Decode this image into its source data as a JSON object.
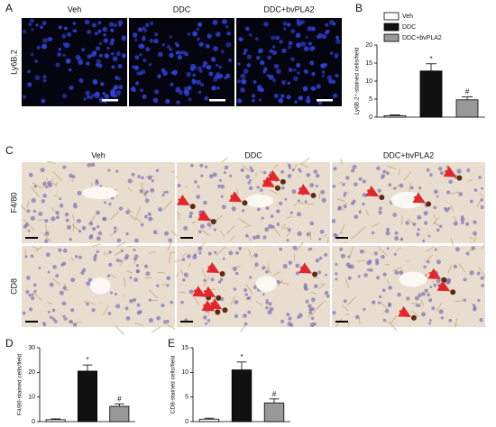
{
  "panel_labels": [
    "A",
    "B",
    "C",
    "D",
    "E"
  ],
  "panel_a": {
    "columns": [
      "Veh",
      "DDC",
      "DDC+bvPLA2"
    ],
    "row_label": "Ly6B.2"
  },
  "panel_c": {
    "columns": [
      "Veh",
      "DDC",
      "DDC+bvPLA2"
    ],
    "rows": [
      "F4/80",
      "CD8"
    ]
  },
  "chart_data": [
    {
      "type": "bar",
      "ylabel": "Ly6B.2⁺-stained cells/field",
      "legend": [
        "Veh",
        "DDC",
        "DDC+bvPLA2"
      ],
      "values": [
        0.4,
        12.8,
        4.8
      ],
      "errors": [
        0.2,
        2.0,
        0.8
      ],
      "colors": [
        "#ffffff",
        "#111111",
        "#999999"
      ],
      "annotations": [
        null,
        "*",
        "#"
      ],
      "ylim": [
        0,
        20
      ],
      "yticks": [
        0,
        5,
        10,
        15,
        20
      ]
    },
    {
      "type": "bar",
      "ylabel": "F4/80-stained cells/field",
      "values": [
        0.8,
        20.5,
        6.2
      ],
      "errors": [
        0.3,
        2.5,
        1.0
      ],
      "colors": [
        "#ffffff",
        "#111111",
        "#999999"
      ],
      "annotations": [
        null,
        "*",
        "#"
      ],
      "ylim": [
        0,
        30
      ],
      "yticks": [
        0,
        10,
        20,
        30
      ]
    },
    {
      "type": "bar",
      "ylabel": "CD8-stained cells/field",
      "values": [
        0.5,
        10.5,
        3.8
      ],
      "errors": [
        0.2,
        1.6,
        0.8
      ],
      "colors": [
        "#ffffff",
        "#111111",
        "#999999"
      ],
      "annotations": [
        null,
        "*",
        "#"
      ],
      "ylim": [
        0,
        15
      ],
      "yticks": [
        0,
        5,
        10,
        15
      ]
    }
  ]
}
